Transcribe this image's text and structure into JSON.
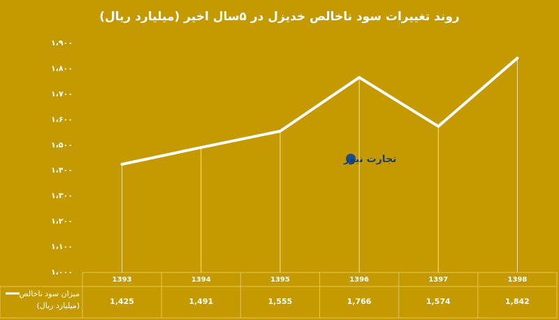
{
  "chart_data": {
    "type": "line",
    "title": "روند تغییرات سود ناخالص خدیزل در ۵سال اخیر (میلیارد ریال)",
    "watermark": "تجارت نیوز",
    "categories": [
      "1393",
      "1394",
      "1395",
      "1396",
      "1397",
      "1398"
    ],
    "series": [
      {
        "name": "میزان سود ناخالص (میلیارد ریال)",
        "color": "#ffffff",
        "values": [
          1425,
          1491,
          1555,
          1766,
          1574,
          1842
        ],
        "value_labels": [
          "1,425",
          "1,491",
          "1,555",
          "1,766",
          "1,574",
          "1,842"
        ]
      }
    ],
    "ylim": [
      1000,
      1900
    ],
    "yticks": [
      {
        "value": 1000,
        "label": "۱،۰۰۰"
      },
      {
        "value": 1100,
        "label": "۱،۱۰۰"
      },
      {
        "value": 1200,
        "label": "۱،۲۰۰"
      },
      {
        "value": 1300,
        "label": "۱،۳۰۰"
      },
      {
        "value": 1400,
        "label": "۱،۴۰۰"
      },
      {
        "value": 1500,
        "label": "۱،۵۰۰"
      },
      {
        "value": 1600,
        "label": "۱،۶۰۰"
      },
      {
        "value": 1700,
        "label": "۱،۷۰۰"
      },
      {
        "value": 1800,
        "label": "۱،۸۰۰"
      },
      {
        "value": 1900,
        "label": "۱،۹۰۰"
      }
    ],
    "grid": false
  }
}
